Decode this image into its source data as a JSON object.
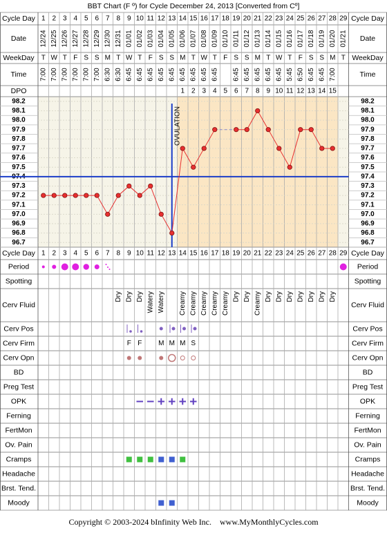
{
  "title": "BBT Chart (F º) for Cycle December 24, 2013  [Converted from Cº]",
  "labels": {
    "cycle_day": "Cycle Day",
    "date": "Date",
    "weekday": "WeekDay",
    "time": "Time",
    "dpo": "DPO",
    "period": "Period",
    "spotting": "Spotting",
    "cerv_fluid": "Cerv Fluid",
    "cerv_pos": "Cerv Pos",
    "cerv_firm": "Cerv Firm",
    "cerv_opn": "Cerv Opn",
    "bd": "BD",
    "preg_test": "Preg Test",
    "opk": "OPK",
    "ferning": "Ferning",
    "fertmon": "FertMon",
    "ov_pain": "Ov. Pain",
    "cramps": "Cramps",
    "headache": "Headache",
    "brst_tend": "Brst. Tend.",
    "moody": "Moody"
  },
  "cycle_days": [
    1,
    2,
    3,
    4,
    5,
    6,
    7,
    8,
    9,
    10,
    11,
    12,
    13,
    14,
    15,
    16,
    17,
    18,
    19,
    20,
    21,
    22,
    23,
    24,
    25,
    26,
    27,
    28,
    29
  ],
  "dates": [
    "12/24",
    "12/25",
    "12/26",
    "12/27",
    "12/28",
    "12/29",
    "12/30",
    "12/31",
    "01/01",
    "01/02",
    "01/03",
    "01/04",
    "01/05",
    "01/06",
    "01/07",
    "01/08",
    "01/09",
    "01/10",
    "01/11",
    "01/12",
    "01/13",
    "01/14",
    "01/15",
    "01/16",
    "01/17",
    "01/18",
    "01/19",
    "01/20",
    "01/21"
  ],
  "weekdays": [
    "T",
    "W",
    "T",
    "F",
    "S",
    "S",
    "M",
    "T",
    "W",
    "T",
    "F",
    "S",
    "S",
    "M",
    "T",
    "W",
    "T",
    "F",
    "S",
    "S",
    "M",
    "T",
    "W",
    "T",
    "F",
    "S",
    "S",
    "M",
    "T"
  ],
  "times": [
    "7:00",
    "7:00",
    "7:00",
    "7:00",
    "7:00",
    "7:00",
    "6:30",
    "6:30",
    "6:45",
    "6:45",
    "6:45",
    "6:45",
    "6:45",
    "6:45",
    "6:45",
    "6:45",
    "6:45",
    null,
    "6:45",
    "6:45",
    "6:45",
    "6:45",
    "6:45",
    "5:45",
    "6:50",
    "6:45",
    "6:45",
    "7:00",
    null
  ],
  "dpo": [
    null,
    null,
    null,
    null,
    null,
    null,
    null,
    null,
    null,
    null,
    null,
    null,
    null,
    1,
    2,
    3,
    4,
    5,
    6,
    7,
    8,
    9,
    10,
    11,
    12,
    13,
    14,
    15,
    null
  ],
  "cerv_fluid": [
    null,
    null,
    null,
    null,
    null,
    null,
    null,
    "Dry",
    "Dry",
    "Dry",
    "Watery",
    "Watery",
    null,
    "Creamy",
    "Creamy",
    "Creamy",
    "Creamy",
    "Creamy",
    "Dry",
    "Dry",
    "Creamy",
    "Dry",
    "Dry",
    "Dry",
    "Dry",
    "Dry",
    "Dry",
    "Dry",
    null
  ],
  "cerv_firm": [
    null,
    null,
    null,
    null,
    null,
    null,
    null,
    null,
    "F",
    "F",
    null,
    "M",
    "M",
    "M",
    "S",
    null,
    null,
    null,
    null,
    null,
    null,
    null,
    null,
    null,
    null,
    null,
    null,
    null,
    null
  ],
  "chart_data": {
    "type": "line",
    "values": [
      97.2,
      97.2,
      97.2,
      97.2,
      97.2,
      97.2,
      97.0,
      97.2,
      97.3,
      97.2,
      97.3,
      97.0,
      96.8,
      97.7,
      97.5,
      97.7,
      97.9,
      null,
      97.9,
      97.9,
      98.1,
      97.9,
      97.7,
      97.5,
      97.9,
      97.9,
      97.7,
      97.7,
      null
    ],
    "color": "#e83030",
    "ylim": [
      96.65,
      98.25
    ],
    "yticks": [
      98.2,
      98.1,
      {
        "value": 98.0,
        "label": "98.0"
      },
      97.9,
      97.8,
      97.7,
      97.6,
      97.5,
      97.4,
      97.3,
      97.2,
      97.1,
      {
        "value": 97.0,
        "label": "97.0"
      },
      96.9,
      96.8,
      96.7
    ],
    "coverline": 97.4,
    "ovulation_day": 13,
    "ovulation_label": "OVULATION",
    "line_color": "#1a3cc8"
  },
  "footer": "Copyright © 2003-2024 bInfinity Web Inc.    www.MyMonthlyCycles.com"
}
